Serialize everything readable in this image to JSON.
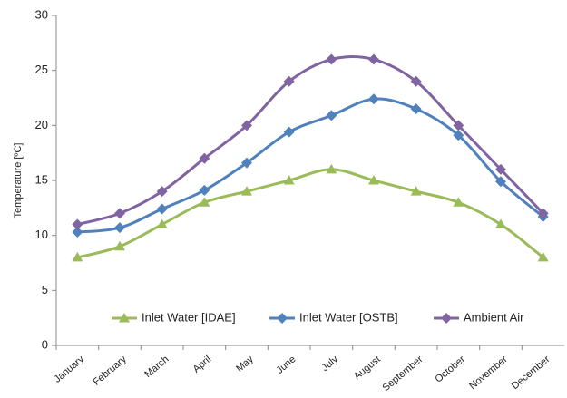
{
  "chart_data": {
    "type": "line",
    "y_label": "Temperature [ºC]",
    "categories": [
      "January",
      "February",
      "March",
      "April",
      "May",
      "June",
      "July",
      "August",
      "September",
      "October",
      "November",
      "December"
    ],
    "series": [
      {
        "name": "Inlet Water [IDAE]",
        "color": "#9bbb59",
        "marker": "triangle",
        "values": [
          8,
          9,
          11,
          13,
          14,
          15,
          16,
          15,
          14,
          13,
          11,
          8
        ]
      },
      {
        "name": "Inlet Water [OSTB]",
        "color": "#4f81bd",
        "marker": "diamond",
        "values": [
          10.3,
          10.7,
          12.4,
          14.1,
          16.6,
          19.4,
          20.9,
          22.4,
          21.5,
          19.1,
          14.9,
          11.7
        ]
      },
      {
        "name": "Ambient Air",
        "color": "#8064a2",
        "marker": "diamond",
        "values": [
          11,
          12,
          14,
          17,
          20,
          24,
          26,
          26,
          24,
          20,
          16,
          12
        ]
      }
    ],
    "ylim": [
      0,
      30
    ],
    "yticks": [
      0,
      5,
      10,
      15,
      20,
      25,
      30
    ],
    "smooth": true,
    "grid": false,
    "legend": "bottom"
  }
}
